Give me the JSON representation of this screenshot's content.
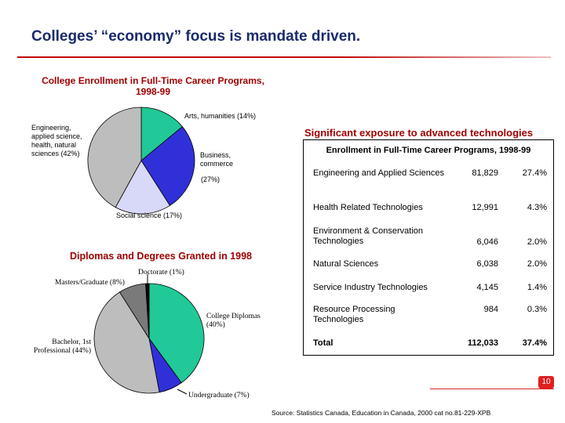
{
  "page": {
    "title": "Colleges’ “economy” focus is mandate driven.",
    "source": "Source: Statistics Canada, Education in Canada, 2000 cat no.81-229-XPB",
    "page_number": "10"
  },
  "colors": {
    "title": "#1a2a6c",
    "chart_title": "#a00000",
    "rule": "#c00000",
    "teal": "#20c997",
    "blue": "#3030d8",
    "lavender": "#d8d8f8",
    "gray": "#bdbdbd",
    "dark_gray": "#7a7a7a"
  },
  "chart_data": [
    {
      "type": "pie",
      "title": "College Enrollment in Full-Time Career Programs, 1998-99",
      "slices": [
        {
          "label": "Arts, humanities (14%)",
          "value": 14,
          "color": "#20c997"
        },
        {
          "label": "Business, commerce",
          "label2": "(27%)",
          "value": 27,
          "color": "#3030d8"
        },
        {
          "label": "Social science (17%)",
          "value": 17,
          "color": "#d8d8f8"
        },
        {
          "label": "Engineering, applied science, health, natural sciences (42%)",
          "value": 42,
          "color": "#bdbdbd"
        }
      ]
    },
    {
      "type": "pie",
      "title": "Diplomas and Degrees Granted in 1998",
      "slices": [
        {
          "label": "College Diplomas (40%)",
          "value": 40,
          "color": "#20c997"
        },
        {
          "label": "Undergraduate (7%)",
          "value": 7,
          "color": "#3030d8"
        },
        {
          "label": "Bachelor, 1st Professional (44%)",
          "value": 44,
          "color": "#bdbdbd"
        },
        {
          "label": "Masters/Graduate (8%)",
          "value": 8,
          "color": "#7a7a7a"
        },
        {
          "label": "Doctorate (1%)",
          "value": 1,
          "color": "#000000"
        }
      ]
    },
    {
      "type": "table",
      "heading": "Significant exposure to advanced technologies",
      "title": "Enrollment in Full-Time Career Programs, 1998-99",
      "rows": [
        {
          "program": "Engineering and Applied Sciences",
          "count": "81,829",
          "pct": "27.4%"
        },
        {
          "program": "Health Related Technologies",
          "count": "12,991",
          "pct": "4.3%"
        },
        {
          "program": "Environment & Conservation Technologies",
          "count": "6,046",
          "pct": "2.0%"
        },
        {
          "program": "Natural Sciences",
          "count": "6,038",
          "pct": "2.0%"
        },
        {
          "program": "Service Industry Technologies",
          "count": "4,145",
          "pct": "1.4%"
        },
        {
          "program": "Resource Processing Technologies",
          "count": "984",
          "pct": "0.3%"
        }
      ],
      "total": {
        "program": "Total",
        "count": "112,033",
        "pct": "37.4%"
      }
    }
  ]
}
